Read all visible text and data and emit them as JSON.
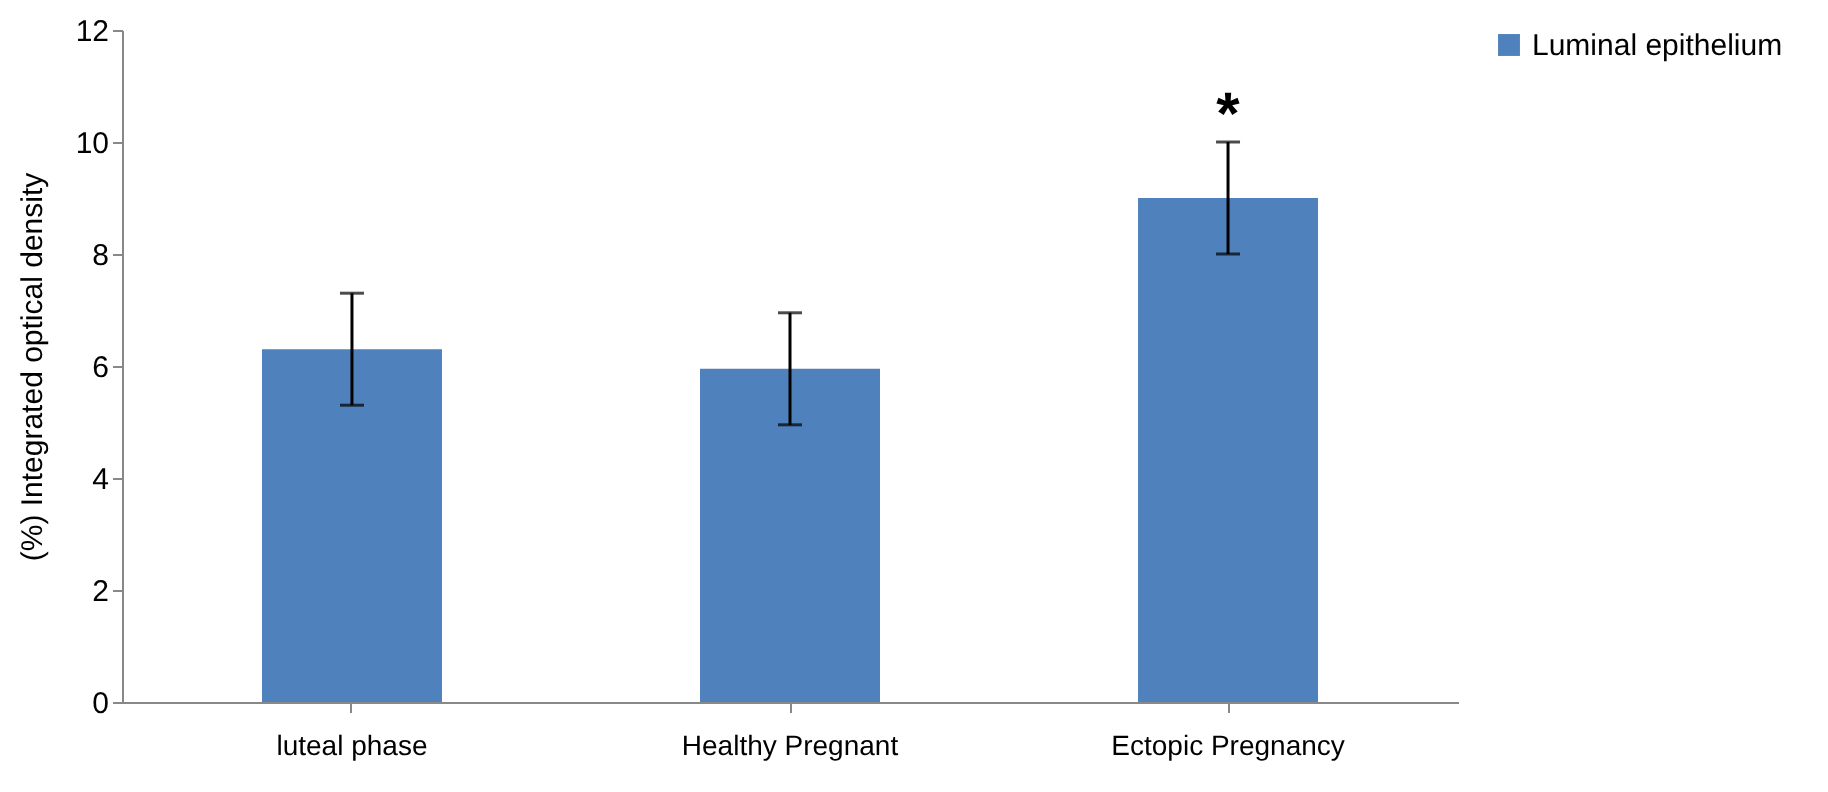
{
  "chart_data": {
    "type": "bar",
    "ylabel": "(%)  Integrated  optical density",
    "categories": [
      "luteal phase",
      "Healthy Pregnant",
      "Ectopic Pregnancy"
    ],
    "series": [
      {
        "name": "Luminal epithelium",
        "color": "#4f81bd",
        "values": [
          6.3,
          5.95,
          9.0
        ],
        "errors": [
          1.0,
          1.0,
          1.0
        ]
      }
    ],
    "ylim": [
      0,
      12
    ],
    "yticks": [
      0,
      2,
      4,
      6,
      8,
      10,
      12
    ],
    "grid": false,
    "legend": "right",
    "annotations": [
      {
        "text": "*",
        "x": "Ectopic Pregnancy",
        "y": 10.0
      }
    ]
  }
}
